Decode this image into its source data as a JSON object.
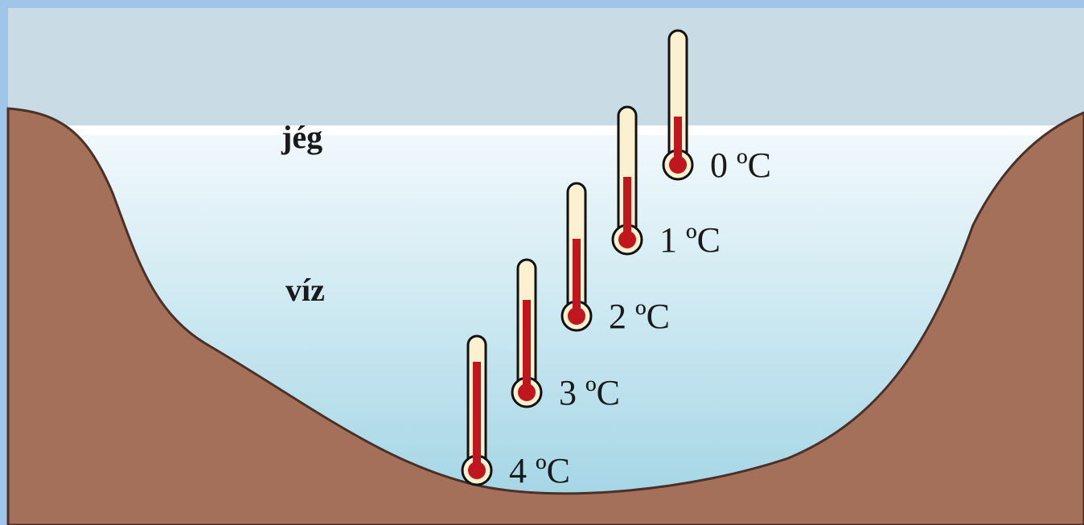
{
  "labels": {
    "ice": "jég",
    "water": "víz"
  },
  "thermometers": [
    {
      "label": "0 ºC"
    },
    {
      "label": "1 ºC"
    },
    {
      "label": "2 ºC"
    },
    {
      "label": "3 ºC"
    },
    {
      "label": "4 ºC"
    }
  ]
}
